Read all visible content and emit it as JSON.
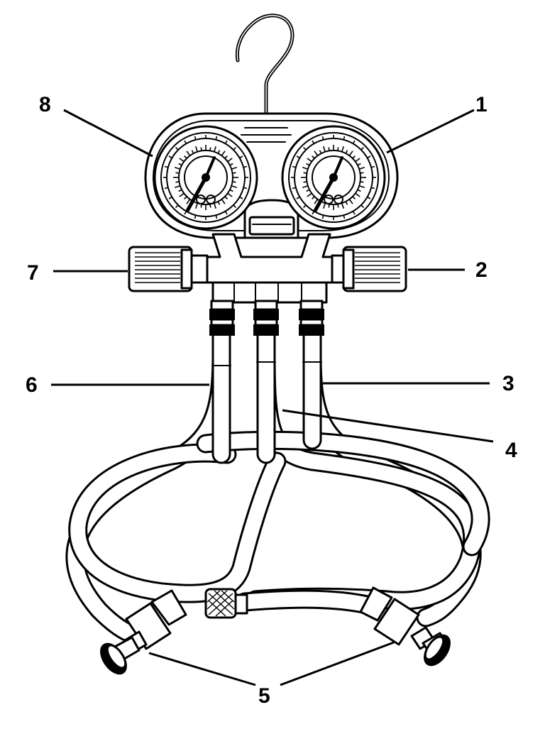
{
  "callouts": {
    "c1": "1",
    "c2": "2",
    "c3": "3",
    "c4": "4",
    "c5": "5",
    "c6": "6",
    "c7": "7",
    "c8": "8"
  },
  "colors": {
    "ink": "#000000",
    "paper": "#ffffff"
  }
}
